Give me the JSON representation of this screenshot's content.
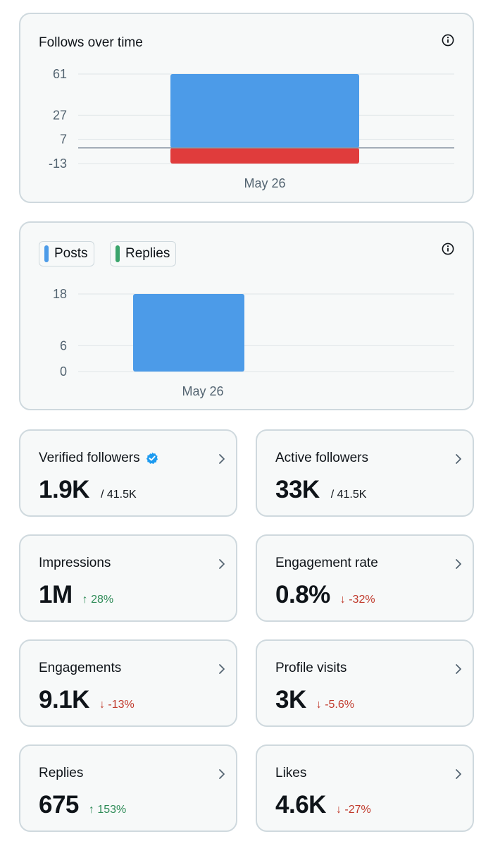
{
  "follows_card": {
    "title": "Follows over time",
    "chart_data": {
      "type": "bar",
      "categories": [
        "May 26"
      ],
      "series": [
        {
          "values": [
            61
          ],
          "color": "#4c9be8"
        },
        {
          "values": [
            -13
          ],
          "color": "#e03c3c"
        }
      ],
      "yticks": [
        61,
        27,
        7,
        -13
      ],
      "ylim": [
        -13,
        61
      ],
      "xlabel": "",
      "ylabel": ""
    }
  },
  "posts_card": {
    "legend": [
      {
        "label": "Posts",
        "color": "#4c9be8"
      },
      {
        "label": "Replies",
        "color": "#3aa46b"
      }
    ],
    "chart_data": {
      "type": "bar",
      "categories": [
        "May 26"
      ],
      "series": [
        {
          "name": "Posts",
          "values": [
            18
          ],
          "color": "#4c9be8"
        },
        {
          "name": "Replies",
          "values": [
            0
          ],
          "color": "#3aa46b"
        }
      ],
      "yticks": [
        18,
        6,
        0
      ],
      "ylim": [
        0,
        18
      ],
      "xlabel": "",
      "ylabel": ""
    }
  },
  "metrics": {
    "verified_followers": {
      "title": "Verified followers",
      "value": "1.9K",
      "total": "/ 41.5K"
    },
    "active_followers": {
      "title": "Active followers",
      "value": "33K",
      "total": "/ 41.5K"
    },
    "impressions": {
      "title": "Impressions",
      "value": "1M",
      "change": "↑ 28%"
    },
    "engagement_rate": {
      "title": "Engagement rate",
      "value": "0.8%",
      "change": "↓ -32%"
    },
    "engagements": {
      "title": "Engagements",
      "value": "9.1K",
      "change": "↓ -13%"
    },
    "profile_visits": {
      "title": "Profile visits",
      "value": "3K",
      "change": "↓ -5.6%"
    },
    "replies": {
      "title": "Replies",
      "value": "675",
      "change": "↑ 153%"
    },
    "likes": {
      "title": "Likes",
      "value": "4.6K",
      "change": "↓ -27%"
    }
  },
  "colors": {
    "accent_blue": "#1d9bf0",
    "up_green": "#2e8b57",
    "down_red": "#c0392b"
  }
}
